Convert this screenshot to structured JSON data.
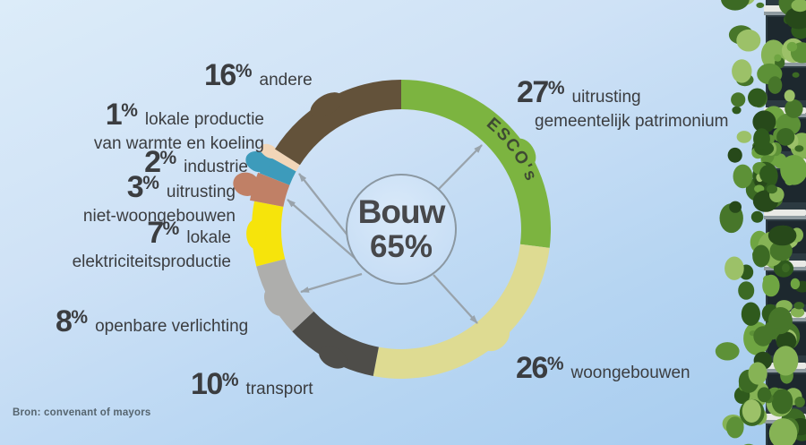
{
  "percent_sign": "%",
  "background": {
    "top_color": "#dcecf9",
    "bottom_color": "#a5cbef"
  },
  "source_note": "Bron: convenant of mayors",
  "center": {
    "name": "Bouw",
    "value": "65"
  },
  "esco_overlay": "ESCO's",
  "colors": {
    "arrow": "#99a3ab",
    "circle_stroke": "#8b98a2",
    "label_text": "#3b3d40",
    "esco_text": "#3e4a33",
    "source_text": "#56656f"
  },
  "chart_data": {
    "type": "pie",
    "subtype": "donut",
    "unit": "%",
    "title": "Bouw 65%",
    "center_label": "Bouw",
    "center_value_pct": 65,
    "legend_position": "around",
    "segments": [
      {
        "label": "uitrusting gemeentelijk patrimonium",
        "value": 27,
        "color": "#7cb440",
        "overlay_text": "ESCO's"
      },
      {
        "label": "woongebouwen",
        "value": 26,
        "color": "#dedb92"
      },
      {
        "label": "transport",
        "value": 10,
        "color": "#4e4d49"
      },
      {
        "label": "openbare verlichting",
        "value": 8,
        "color": "#aeaeac"
      },
      {
        "label": "lokale elektriciteitsproductie",
        "value": 7,
        "color": "#f6e40b"
      },
      {
        "label": "uitrusting niet-woongebouwen",
        "value": 3,
        "color": "#c08066"
      },
      {
        "label": "industrie",
        "value": 2,
        "color": "#3d9bbb"
      },
      {
        "label": "lokale productie van warmte en koeling",
        "value": 1,
        "color": "#f2d6b8"
      },
      {
        "label": "andere",
        "value": 16,
        "color": "#63523a"
      }
    ]
  },
  "callouts": [
    {
      "num": "16",
      "line1": "andere"
    },
    {
      "num": "1",
      "line1": "lokale productie",
      "line2": "van warmte en koeling"
    },
    {
      "num": "2",
      "line1": "industrie"
    },
    {
      "num": "3",
      "line1": "uitrusting",
      "line2": "niet-woongebouwen"
    },
    {
      "num": "7",
      "line1": "lokale",
      "line2": "elektriciteitsproductie"
    },
    {
      "num": "8",
      "line1": "openbare verlichting"
    },
    {
      "num": "10",
      "line1": "transport"
    },
    {
      "num": "27",
      "line1": "uitrusting",
      "line2": "gemeentelijk patrimonium"
    },
    {
      "num": "26",
      "line1": "woongebouwen"
    }
  ],
  "building": {
    "facade_color": "#2c3a41",
    "window_color": "#1d282e",
    "balcony_color": "#e9eae6",
    "balcony_shadow": "#8f9ba0",
    "foliage_colors": [
      "#2f5a1d",
      "#47762a",
      "#5d9137",
      "#6fa542",
      "#3c6a24",
      "#86b355",
      "#27491a",
      "#9cc168"
    ]
  }
}
